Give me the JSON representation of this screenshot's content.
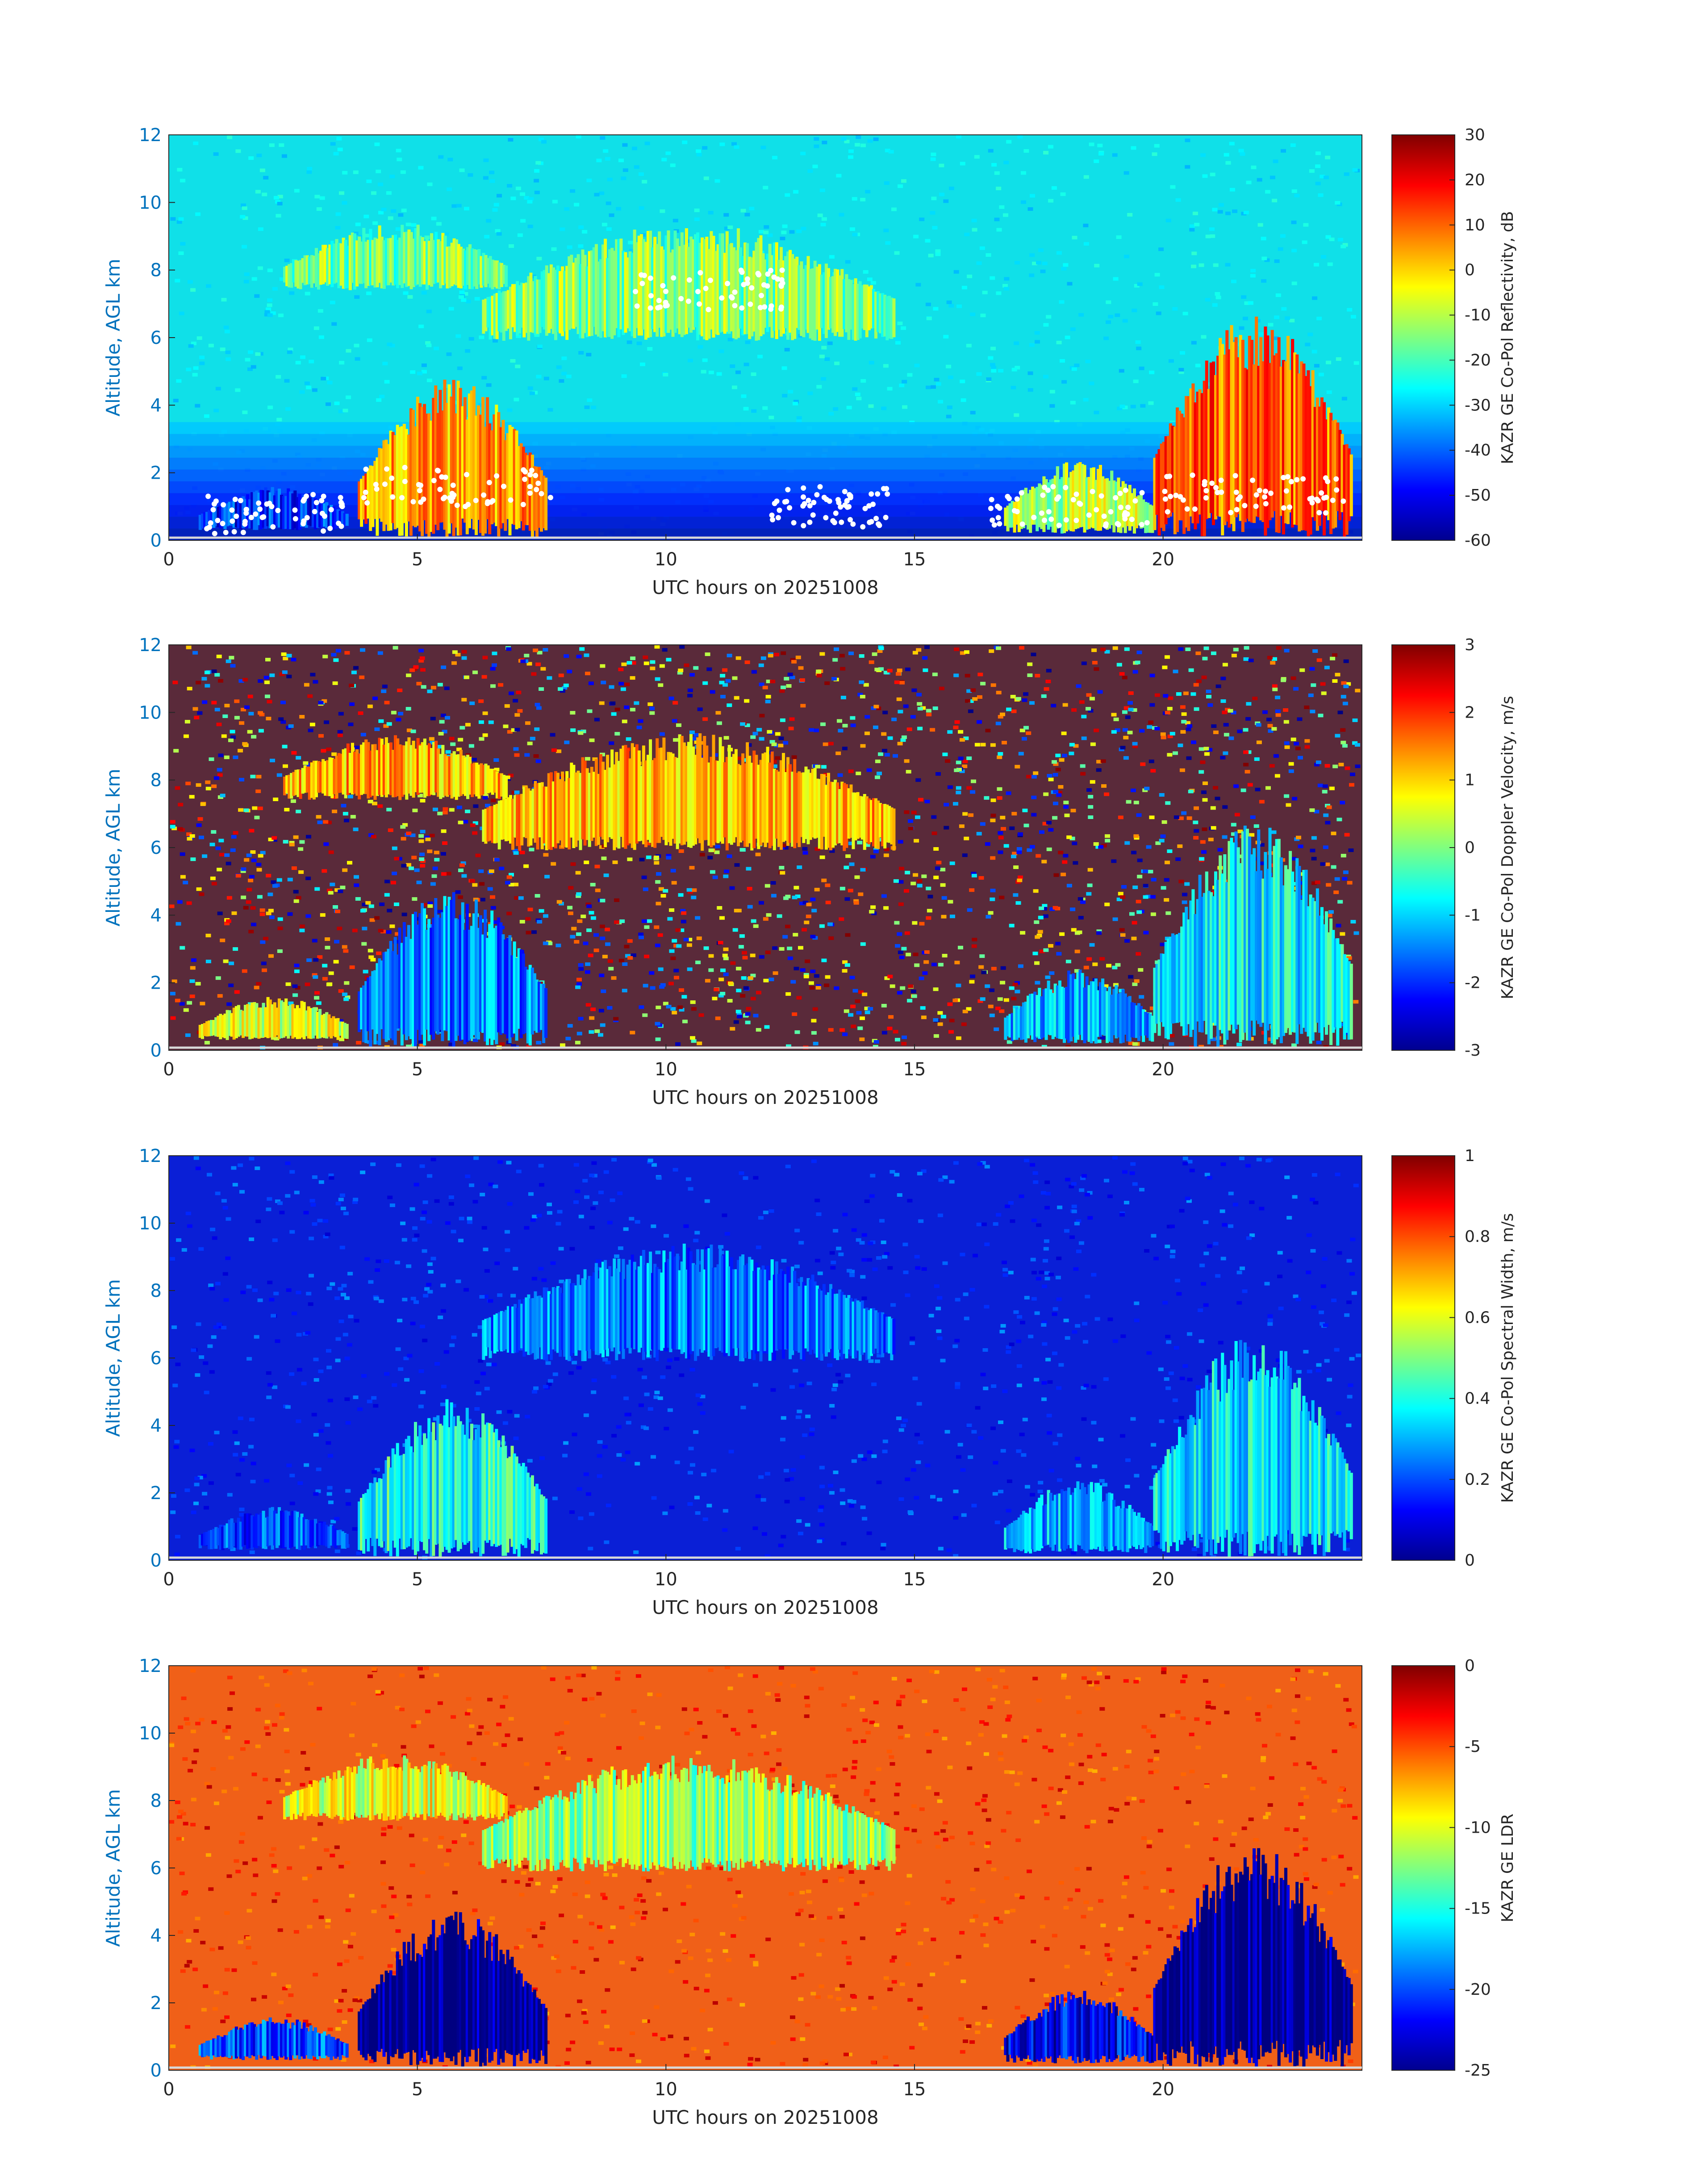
{
  "figure": {
    "colormap": "jet",
    "jet_stops": [
      "#00008f",
      "#0000ff",
      "#00ffff",
      "#ffff00",
      "#ff0000",
      "#800000"
    ],
    "axis_color_y": "#0072BD",
    "axis_color_x": "#262626",
    "background_noise_color": "#00e5e8",
    "marker_color": "#ffffff"
  },
  "chart_data": [
    {
      "type": "heatmap",
      "variable": "reflectivity",
      "ylabel": "Altitude, AGL km",
      "xlabel": "UTC hours on 20251008",
      "xlim": [
        0,
        24
      ],
      "ylim": [
        0,
        12
      ],
      "xticks": [
        "0",
        "5",
        "10",
        "15",
        "20"
      ],
      "yticks": [
        "0",
        "2",
        "4",
        "6",
        "8",
        "10",
        "12"
      ],
      "colorbar_label": "KAZR GE Co-Pol Reflectivity, dB",
      "colorbar_ticks": [
        "-60",
        "-50",
        "-40",
        "-30",
        "-20",
        "-10",
        "0",
        "10",
        "20",
        "30"
      ],
      "clim": [
        -60,
        30
      ],
      "markers": "white dots (cloud base)",
      "features": [
        {
          "t0": 0.6,
          "t1": 3.6,
          "z0": 0.3,
          "z1": 1.6,
          "value": -45
        },
        {
          "t0": 3.8,
          "t1": 7.6,
          "z0": 0.1,
          "z1": 4.8,
          "value": 5
        },
        {
          "t0": 2.3,
          "t1": 6.8,
          "z0": 7.4,
          "z1": 9.4,
          "value": -15
        },
        {
          "t0": 6.3,
          "t1": 14.6,
          "z0": 5.9,
          "z1": 9.4,
          "value": -15
        },
        {
          "t0": 16.8,
          "t1": 19.8,
          "z0": 0.2,
          "z1": 2.4,
          "value": -10
        },
        {
          "t0": 19.8,
          "t1": 23.8,
          "z0": 0.1,
          "z1": 6.8,
          "value": 10
        }
      ]
    },
    {
      "type": "heatmap",
      "variable": "doppler_velocity",
      "ylabel": "Altitude, AGL km",
      "xlabel": "UTC hours on 20251008",
      "xlim": [
        0,
        24
      ],
      "ylim": [
        0,
        12
      ],
      "xticks": [
        "0",
        "5",
        "10",
        "15",
        "20"
      ],
      "yticks": [
        "0",
        "2",
        "4",
        "6",
        "8",
        "10",
        "12"
      ],
      "colorbar_label": "KAZR GE Co-Pol Doppler Velocity, m/s",
      "colorbar_ticks": [
        "-3",
        "-2",
        "-1",
        "0",
        "1",
        "2",
        "3"
      ],
      "clim": [
        -3,
        3
      ],
      "features": [
        {
          "t0": 0.6,
          "t1": 3.6,
          "z0": 0.3,
          "z1": 1.6,
          "value": 0.5
        },
        {
          "t0": 3.8,
          "t1": 7.6,
          "z0": 0.1,
          "z1": 4.8,
          "value": -1.5
        },
        {
          "t0": 2.3,
          "t1": 6.8,
          "z0": 7.4,
          "z1": 9.4,
          "value": 1.2
        },
        {
          "t0": 6.3,
          "t1": 14.6,
          "z0": 5.9,
          "z1": 9.4,
          "value": 1.2
        },
        {
          "t0": 16.8,
          "t1": 19.8,
          "z0": 0.2,
          "z1": 2.4,
          "value": -1.2
        },
        {
          "t0": 19.8,
          "t1": 23.8,
          "z0": 0.1,
          "z1": 6.8,
          "value": -0.8
        }
      ]
    },
    {
      "type": "heatmap",
      "variable": "spectral_width",
      "ylabel": "Altitude, AGL km",
      "xlabel": "UTC hours on 20251008",
      "xlim": [
        0,
        24
      ],
      "ylim": [
        0,
        12
      ],
      "xticks": [
        "0",
        "5",
        "10",
        "15",
        "20"
      ],
      "yticks": [
        "0",
        "2",
        "4",
        "6",
        "8",
        "10",
        "12"
      ],
      "colorbar_label": "KAZR GE Co-Pol Spectral Width, m/s",
      "colorbar_ticks": [
        "0",
        "0.2",
        "0.4",
        "0.6",
        "0.8",
        "1"
      ],
      "clim": [
        0,
        1
      ],
      "features": [
        {
          "t0": 0.6,
          "t1": 3.6,
          "z0": 0.3,
          "z1": 1.6,
          "value": 0.2
        },
        {
          "t0": 3.8,
          "t1": 7.6,
          "z0": 0.1,
          "z1": 4.8,
          "value": 0.4
        },
        {
          "t0": 6.3,
          "t1": 14.6,
          "z0": 5.9,
          "z1": 9.4,
          "value": 0.25
        },
        {
          "t0": 16.8,
          "t1": 19.8,
          "z0": 0.2,
          "z1": 2.4,
          "value": 0.3
        },
        {
          "t0": 19.8,
          "t1": 23.8,
          "z0": 0.1,
          "z1": 6.8,
          "value": 0.35
        }
      ]
    },
    {
      "type": "heatmap",
      "variable": "ldr",
      "ylabel": "Altitude, AGL km",
      "xlabel": "UTC hours on 20251008",
      "xlim": [
        0,
        24
      ],
      "ylim": [
        0,
        12
      ],
      "xticks": [
        "0",
        "5",
        "10",
        "15",
        "20"
      ],
      "yticks": [
        "0",
        "2",
        "4",
        "6",
        "8",
        "10",
        "12"
      ],
      "colorbar_label": "KAZR GE LDR",
      "colorbar_ticks": [
        "-25",
        "-20",
        "-15",
        "-10",
        "-5",
        "0"
      ],
      "clim": [
        -25,
        0
      ],
      "features": [
        {
          "t0": 0.6,
          "t1": 3.6,
          "z0": 0.3,
          "z1": 1.6,
          "value": -20
        },
        {
          "t0": 3.8,
          "t1": 7.6,
          "z0": 0.1,
          "z1": 4.8,
          "value": -25
        },
        {
          "t0": 2.3,
          "t1": 6.8,
          "z0": 7.4,
          "z1": 9.4,
          "value": -10
        },
        {
          "t0": 6.3,
          "t1": 14.6,
          "z0": 5.9,
          "z1": 9.4,
          "value": -12
        },
        {
          "t0": 16.8,
          "t1": 19.8,
          "z0": 0.2,
          "z1": 2.4,
          "value": -22
        },
        {
          "t0": 19.8,
          "t1": 23.8,
          "z0": 0.1,
          "z1": 6.8,
          "value": -25
        }
      ]
    }
  ]
}
